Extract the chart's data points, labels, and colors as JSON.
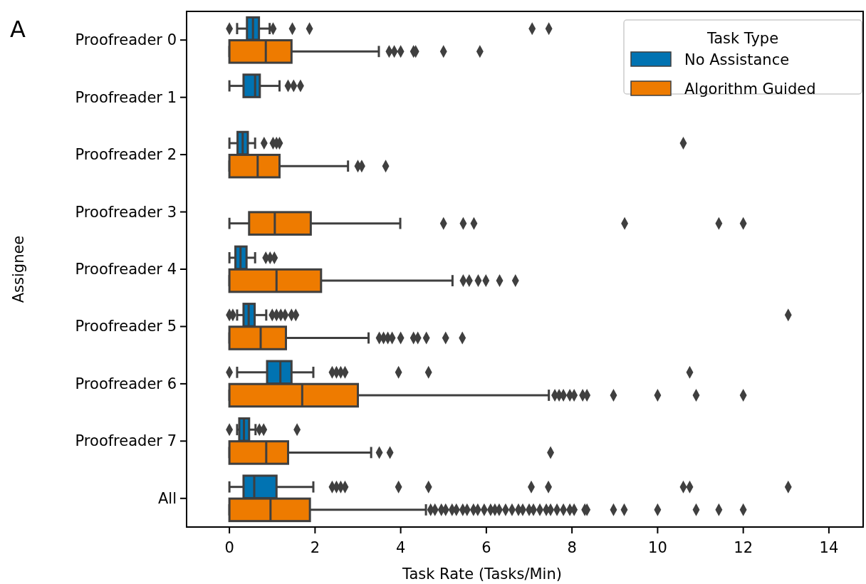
{
  "chart_data": {
    "type": "box",
    "orientation": "horizontal",
    "xlabel": "Task Rate (Tasks/Min)",
    "ylabel": "Assignee",
    "legend_title": "Task Type",
    "legend": "top right",
    "marker": "diamond",
    "annotations": [
      "A"
    ],
    "categories": [
      "Proofreader 0",
      "Proofreader 1",
      "Proofreader 2",
      "Proofreader 3",
      "Proofreader 4",
      "Proofreader 5",
      "Proofreader 6",
      "Proofreader 7",
      "All"
    ],
    "xlim": [
      -1,
      14.8
    ],
    "xticks": [
      0,
      2,
      4,
      6,
      8,
      10,
      12,
      14
    ],
    "series": [
      {
        "name": "No Assistance",
        "color": "#0173b2",
        "boxes": [
          {
            "low": 0.18,
            "q1": 0.41,
            "median": 0.55,
            "q3": 0.69,
            "high": 0.94,
            "outliers": [
              0,
              1.02,
              1.47,
              1.87,
              7.07,
              7.46
            ]
          },
          {
            "low": 0,
            "q1": 0.33,
            "median": 0.6,
            "q3": 0.71,
            "high": 1.17,
            "outliers": [
              1.37,
              1.5,
              1.66
            ]
          },
          {
            "low": 0,
            "q1": 0.19,
            "median": 0.31,
            "q3": 0.43,
            "high": 0.6,
            "outliers": [
              0.81,
              1.02,
              1.1,
              1.17,
              10.6
            ]
          },
          null,
          {
            "low": 0,
            "q1": 0.14,
            "median": 0.26,
            "q3": 0.4,
            "high": 0.6,
            "outliers": [
              0.85,
              0.95,
              1.05
            ]
          },
          {
            "low": 0.18,
            "q1": 0.33,
            "median": 0.45,
            "q3": 0.59,
            "high": 0.86,
            "outliers": [
              0,
              0.08,
              1.0,
              1.1,
              1.2,
              1.3,
              1.45,
              1.55,
              13.05
            ]
          },
          {
            "low": 0.18,
            "q1": 0.88,
            "median": 1.19,
            "q3": 1.45,
            "high": 1.96,
            "outliers": [
              0,
              2.4,
              2.5,
              2.6,
              2.7,
              3.95,
              4.65,
              10.75
            ]
          },
          {
            "low": 0.18,
            "q1": 0.23,
            "median": 0.34,
            "q3": 0.46,
            "high": 0.61,
            "outliers": [
              0,
              0.7,
              0.8,
              1.58
            ]
          },
          {
            "low": 0,
            "q1": 0.33,
            "median": 0.58,
            "q3": 1.1,
            "high": 1.96,
            "outliers": [
              2.4,
              2.5,
              2.6,
              2.7,
              3.95,
              4.65,
              7.05,
              7.45,
              10.6,
              10.75,
              13.05
            ]
          }
        ]
      },
      {
        "name": "Algorithm Guided",
        "color": "#ee7b00",
        "boxes": [
          {
            "low": 0,
            "q1": 0,
            "median": 0.85,
            "q3": 1.45,
            "high": 3.49,
            "outliers": [
              3.73,
              3.85,
              4.0,
              4.3,
              4.35,
              5.0,
              5.85
            ]
          },
          null,
          {
            "low": 0,
            "q1": 0,
            "median": 0.66,
            "q3": 1.17,
            "high": 2.77,
            "outliers": [
              3.0,
              3.09,
              3.65
            ]
          },
          {
            "low": 0,
            "q1": 0.46,
            "median": 1.06,
            "q3": 1.9,
            "high": 3.99,
            "outliers": [
              5.0,
              5.46,
              5.71,
              9.23,
              11.43,
              12.0
            ]
          },
          {
            "low": 0,
            "q1": 0,
            "median": 1.1,
            "q3": 2.14,
            "high": 5.21,
            "outliers": [
              5.46,
              5.6,
              5.81,
              5.99,
              6.31,
              6.68
            ]
          },
          {
            "low": 0,
            "q1": 0,
            "median": 0.73,
            "q3": 1.32,
            "high": 3.25,
            "outliers": [
              3.5,
              3.6,
              3.7,
              3.8,
              4.0,
              4.3,
              4.4,
              4.6,
              5.05,
              5.44
            ]
          },
          {
            "low": 0,
            "q1": 0,
            "median": 1.7,
            "q3": 3.0,
            "high": 7.46,
            "outliers": [
              7.6,
              7.7,
              7.8,
              7.95,
              8.05,
              8.25,
              8.35,
              8.97,
              10.0,
              10.9,
              12.0
            ]
          },
          {
            "low": 0,
            "q1": 0,
            "median": 0.86,
            "q3": 1.37,
            "high": 3.31,
            "outliers": [
              3.5,
              3.75,
              7.5
            ]
          },
          {
            "low": 0,
            "q1": 0,
            "median": 0.96,
            "q3": 1.88,
            "high": 4.59,
            "outliers": [
              4.7,
              4.8,
              4.95,
              5.05,
              5.2,
              5.3,
              5.45,
              5.55,
              5.7,
              5.8,
              5.95,
              6.1,
              6.2,
              6.3,
              6.45,
              6.6,
              6.75,
              6.85,
              7.0,
              7.1,
              7.25,
              7.4,
              7.5,
              7.65,
              7.8,
              7.95,
              8.05,
              8.3,
              8.35,
              8.97,
              9.22,
              10.0,
              10.9,
              11.43,
              12.0
            ]
          }
        ]
      }
    ]
  }
}
